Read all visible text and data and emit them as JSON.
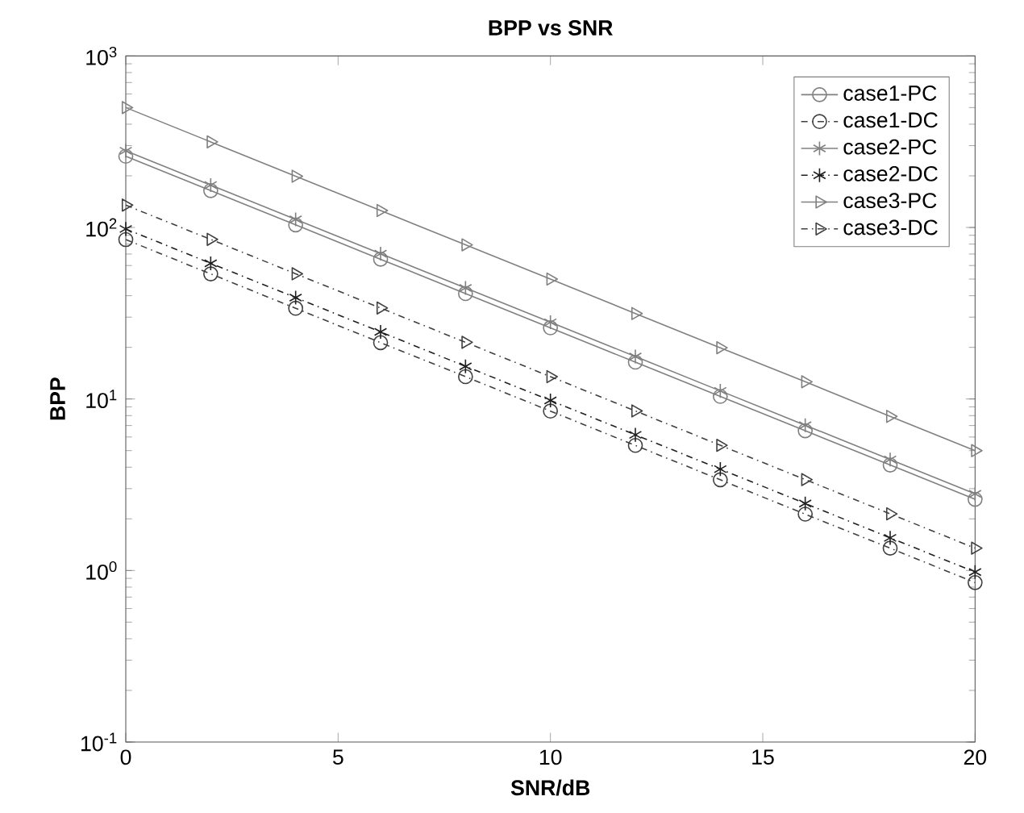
{
  "chart_data": {
    "type": "line",
    "title": "BPP vs SNR",
    "xlabel": "SNR/dB",
    "ylabel": "BPP",
    "log": "y",
    "legend": "top right",
    "xlim": [
      0,
      20
    ],
    "xticks": [
      0,
      5,
      10,
      15,
      20
    ],
    "ylim": [
      0.1,
      1000
    ],
    "yticks": [
      {
        "value": 0.1,
        "label": "10$^{-1}$"
      },
      {
        "value": 1,
        "label": "10$^{0}$"
      },
      {
        "value": 10,
        "label": "10$^{1}$"
      },
      {
        "value": 100,
        "label": "10$^{2}$"
      },
      {
        "value": 1000,
        "label": "10$^{3}$"
      }
    ],
    "x": [
      0,
      2,
      4,
      6,
      8,
      10,
      12,
      14,
      16,
      18,
      20
    ],
    "series": [
      {
        "name": "case1-PC",
        "color": "#808080",
        "marker": "circle",
        "line_style": "solid",
        "values": [
          260,
          164,
          103.5,
          65.3,
          41.2,
          26,
          16.4,
          10.35,
          6.53,
          4.12,
          2.6
        ]
      },
      {
        "name": "case1-DC",
        "color": "#404040",
        "marker": "circle",
        "line_style": "dashdot",
        "values": [
          85,
          53.6,
          33.8,
          21.3,
          13.5,
          8.5,
          5.36,
          3.38,
          2.13,
          1.35,
          0.85
        ]
      },
      {
        "name": "case2-PC",
        "color": "#808080",
        "marker": "cross",
        "line_style": "solid",
        "values": [
          280,
          176.7,
          111.5,
          70.3,
          44.4,
          28,
          17.7,
          11.15,
          7.03,
          4.44,
          2.8
        ]
      },
      {
        "name": "case2-DC",
        "color": "#202020",
        "marker": "cross",
        "line_style": "dashdot",
        "values": [
          98,
          61.8,
          39,
          24.6,
          15.5,
          9.8,
          6.18,
          3.9,
          2.46,
          1.55,
          0.98
        ]
      },
      {
        "name": "case3-PC",
        "color": "#808080",
        "marker": "triangle",
        "line_style": "solid",
        "values": [
          500,
          315.5,
          199,
          125.6,
          79.2,
          50,
          31.5,
          19.9,
          12.6,
          7.92,
          5
        ]
      },
      {
        "name": "case3-DC",
        "color": "#404040",
        "marker": "triangle",
        "line_style": "dashdot",
        "values": [
          135,
          85.2,
          53.7,
          33.9,
          21.4,
          13.5,
          8.52,
          5.37,
          3.39,
          2.14,
          1.35
        ]
      }
    ]
  }
}
